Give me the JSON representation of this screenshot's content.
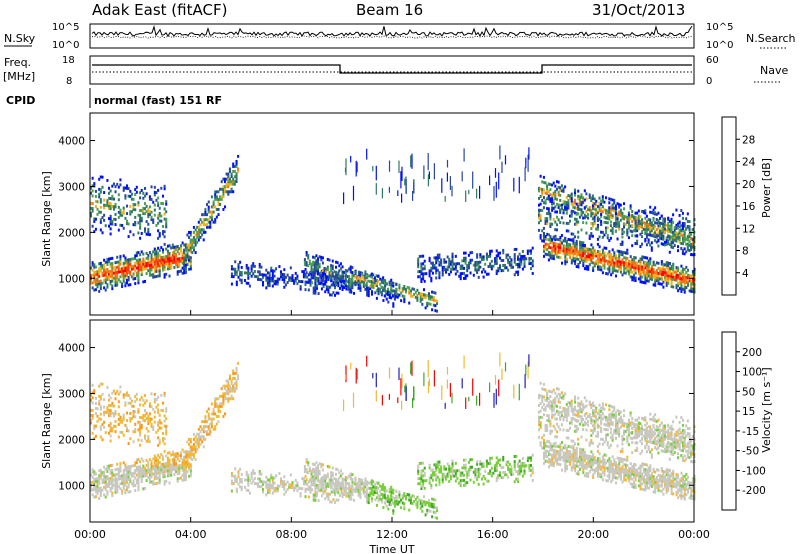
{
  "header": {
    "station": "Adak East (fitACF)",
    "beam": "Beam 16",
    "date": "31/Oct/2013"
  },
  "noise_panel": {
    "left_label": "N.Sky",
    "left_ticks": [
      "10^5",
      "10^0"
    ],
    "right_label": "N.Search",
    "right_ticks": [
      "10^5",
      "10^0"
    ]
  },
  "freq_panel": {
    "left_label": "Freq.",
    "left_unit": "[MHz]",
    "left_ticks": [
      "18",
      "8"
    ],
    "right_label": "Nave",
    "right_ticks": [
      "60",
      "0"
    ]
  },
  "cpid_panel": {
    "label": "CPID",
    "mode_text": "normal (fast) 151 RF"
  },
  "colors": {
    "power_scale": [
      "#0010ff",
      "#2848a0",
      "#2e7a62",
      "#4aa050",
      "#f0b020",
      "#f07818",
      "#f04010",
      "#ff0000"
    ],
    "velocity_scale": [
      "#ff0000",
      "#ff5010",
      "#ff9818",
      "#f5b830",
      "#c8c8c0",
      "#78d038",
      "#40a828",
      "#3050a0",
      "#2020c0"
    ]
  },
  "chart_data": [
    {
      "type": "heatmap",
      "name": "power-panel",
      "xlabel": "",
      "ylabel": "Slant Range [km]",
      "y_ticks": [
        "1000",
        "2000",
        "3000",
        "4000"
      ],
      "ylim": [
        200,
        4600
      ],
      "colorbar_label": "Power [dB]",
      "colorbar_ticks": [
        "4",
        "8",
        "12",
        "16",
        "20",
        "24",
        "28"
      ],
      "colorbar_range": [
        0,
        32
      ]
    },
    {
      "type": "heatmap",
      "name": "velocity-panel",
      "xlabel": "Time UT",
      "ylabel": "Slant Range [km]",
      "y_ticks": [
        "1000",
        "2000",
        "3000",
        "4000"
      ],
      "ylim": [
        200,
        4600
      ],
      "colorbar_label": "Velocity [m s⁻¹]",
      "colorbar_ticks": [
        "-200",
        "-100",
        "-50",
        "-15",
        "15",
        "50",
        "100",
        "200"
      ],
      "x_ticks": [
        "00:00",
        "04:00",
        "08:00",
        "12:00",
        "16:00",
        "20:00",
        "00:00"
      ],
      "xlim_hours": [
        0,
        24
      ]
    }
  ]
}
